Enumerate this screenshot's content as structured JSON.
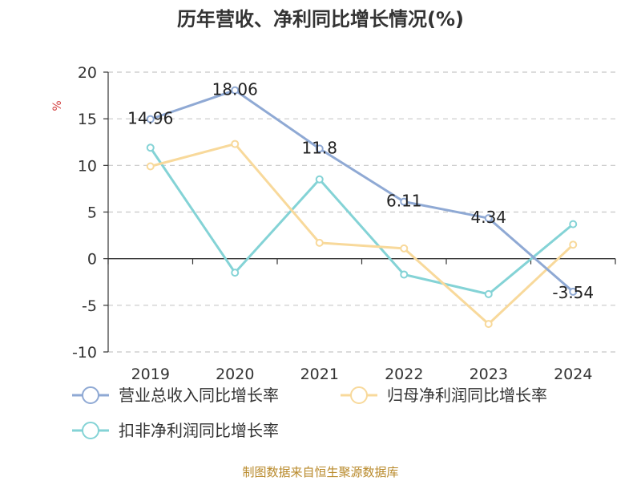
{
  "chart_data": {
    "type": "line",
    "title": "历年营收、净利同比增长情况(%)",
    "ylabel": "%",
    "xlabel": "",
    "categories": [
      "2019",
      "2020",
      "2021",
      "2022",
      "2023",
      "2024"
    ],
    "ylim": [
      -10,
      20
    ],
    "yticks": [
      20,
      15,
      10,
      5,
      0,
      -5,
      -10
    ],
    "grid": true,
    "legend_position": "bottom-left",
    "series": [
      {
        "name": "营业总收入同比增长率",
        "values": [
          14.96,
          18.06,
          11.8,
          6.11,
          4.34,
          -3.54
        ],
        "labels": [
          "14.96",
          "18.06",
          "11.8",
          "6.11",
          "4.34",
          "-3.54"
        ],
        "color": "#8fa9d4"
      },
      {
        "name": "归母净利润同比增长率",
        "values": [
          9.9,
          12.3,
          1.7,
          1.1,
          -7.0,
          1.5
        ],
        "color": "#f8d99b"
      },
      {
        "name": "扣非净利润同比增长率",
        "values": [
          11.9,
          -1.5,
          8.5,
          -1.7,
          -3.8,
          3.7
        ],
        "color": "#84d3d6"
      }
    ]
  },
  "source": "制图数据来自恒生聚源数据库"
}
